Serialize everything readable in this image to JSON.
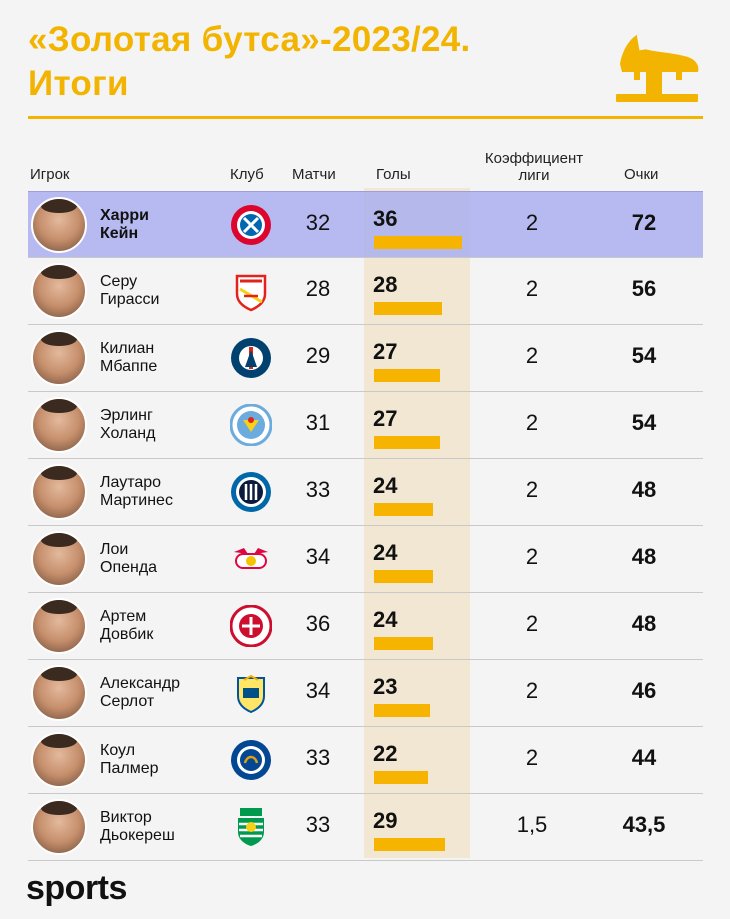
{
  "header": {
    "title_line1": "«Золотая бутса»-2023/24.",
    "title_line2": "Итоги"
  },
  "columns": {
    "player": "Игрок",
    "club": "Клуб",
    "matches": "Матчи",
    "goals": "Голы",
    "coef_line1": "Коэффициент",
    "coef_line2": "лиги",
    "points": "Очки"
  },
  "colors": {
    "accent": "#f2b400",
    "bar": "#f6b400",
    "highlight_row": "#aaafee",
    "goals_band": "#f1e7d2"
  },
  "chart_data": {
    "type": "table",
    "goals_bar_max": 36,
    "rows": [
      {
        "first": "Харри",
        "last": "Кейн",
        "club_icon": "bayern-munich-crest-icon",
        "matches": "32",
        "goals": 36,
        "coef": "2",
        "points": "72",
        "highlight": true
      },
      {
        "first": "Серу",
        "last": "Гирасси",
        "club_icon": "vfb-stuttgart-crest-icon",
        "matches": "28",
        "goals": 28,
        "coef": "2",
        "points": "56",
        "highlight": false
      },
      {
        "first": "Килиан",
        "last": "Мбаппе",
        "club_icon": "psg-crest-icon",
        "matches": "29",
        "goals": 27,
        "coef": "2",
        "points": "54",
        "highlight": false
      },
      {
        "first": "Эрлинг",
        "last": "Холанд",
        "club_icon": "manchester-city-crest-icon",
        "matches": "31",
        "goals": 27,
        "coef": "2",
        "points": "54",
        "highlight": false
      },
      {
        "first": "Лаутаро",
        "last": "Мартинес",
        "club_icon": "inter-crest-icon",
        "matches": "33",
        "goals": 24,
        "coef": "2",
        "points": "48",
        "highlight": false
      },
      {
        "first": "Лои",
        "last": "Опенда",
        "club_icon": "rb-leipzig-crest-icon",
        "matches": "34",
        "goals": 24,
        "coef": "2",
        "points": "48",
        "highlight": false
      },
      {
        "first": "Артем",
        "last": "Довбик",
        "club_icon": "girona-crest-icon",
        "matches": "36",
        "goals": 24,
        "coef": "2",
        "points": "48",
        "highlight": false
      },
      {
        "first": "Александр",
        "last": "Серлот",
        "club_icon": "villarreal-crest-icon",
        "matches": "34",
        "goals": 23,
        "coef": "2",
        "points": "46",
        "highlight": false
      },
      {
        "first": "Коул",
        "last": "Палмер",
        "club_icon": "chelsea-crest-icon",
        "matches": "33",
        "goals": 22,
        "coef": "2",
        "points": "44",
        "highlight": false
      },
      {
        "first": "Виктор",
        "last": "Дьокереш",
        "club_icon": "sporting-cp-crest-icon",
        "matches": "33",
        "goals": 29,
        "coef": "1,5",
        "points": "43,5",
        "highlight": false
      }
    ]
  },
  "footer": {
    "brand": "sports"
  }
}
